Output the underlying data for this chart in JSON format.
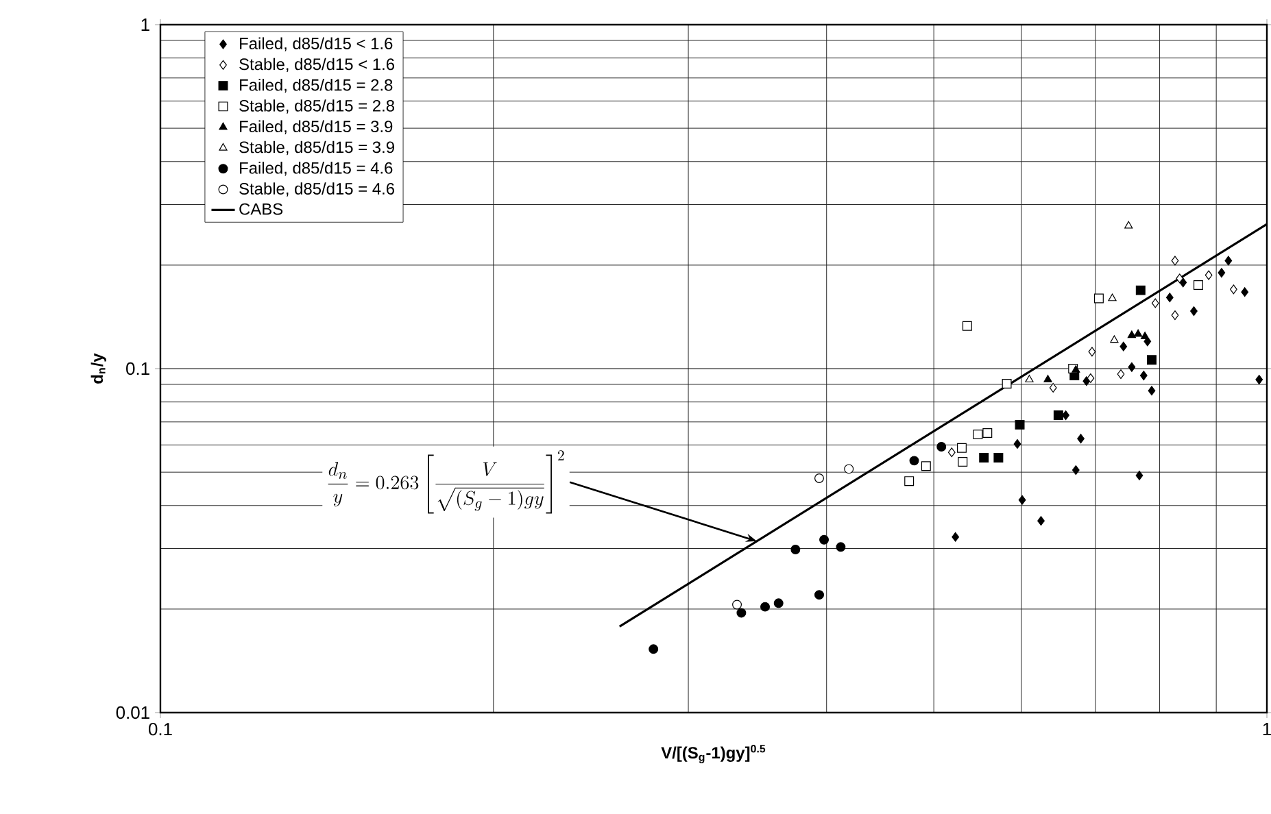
{
  "chart_data": {
    "type": "scatter",
    "xlabel": "V/[(S$_{g}$-1)gy]$^{0.5}$",
    "ylabel": "d$_{n}$/y",
    "log": "xy",
    "grid": true,
    "legend": "top left",
    "xlim": [
      0.1,
      1
    ],
    "ylim": [
      0.01,
      1
    ],
    "xticks": [
      0.1,
      1
    ],
    "yticks": [
      0.01,
      0.1,
      1
    ],
    "annotations": [
      {
        "text": "\\frac{d_n}{y} = 0.263\\left[\\frac{V}{\\sqrt{(S_g-1)gy}}\\right]^2",
        "x": 0.346,
        "y": 0.0315
      }
    ],
    "series": [
      {
        "name": "Failed, d85/d15 < 1.6",
        "marker": "diamond",
        "color": "#000000",
        "x": [
          0.523,
          0.601,
          0.625,
          0.595,
          0.672,
          0.679,
          0.687,
          0.767,
          0.755,
          0.774,
          0.787,
          0.742,
          0.78,
          0.817,
          0.859,
          0.84,
          0.91,
          0.923,
          0.955,
          0.984,
          0.658
        ],
        "values": [
          0.0324,
          0.0415,
          0.0361,
          0.0604,
          0.0507,
          0.0626,
          0.092,
          0.0489,
          0.101,
          0.0955,
          0.0863,
          0.116,
          0.12,
          0.161,
          0.147,
          0.178,
          0.19,
          0.206,
          0.167,
          0.0929,
          0.0732
        ]
      },
      {
        "name": "Stable, d85/d15 < 1.6",
        "marker": "diamond",
        "color": "#ffffff",
        "x": [
          0.826,
          0.826,
          0.886,
          0.933,
          0.793,
          0.695,
          0.738,
          0.693,
          0.641,
          0.519,
          0.834
        ],
        "values": [
          0.206,
          0.143,
          0.187,
          0.17,
          0.155,
          0.112,
          0.0964,
          0.0938,
          0.088,
          0.0571,
          0.183
        ]
      },
      {
        "name": "Failed, d85/d15 = 2.8",
        "marker": "square",
        "color": "#000000",
        "x": [
          0.555,
          0.572,
          0.598,
          0.648,
          0.67,
          0.769,
          0.787
        ],
        "values": [
          0.0551,
          0.0551,
          0.0687,
          0.0732,
          0.0955,
          0.169,
          0.106
        ]
      },
      {
        "name": "Stable, d85/d15 = 2.8",
        "marker": "square",
        "color": "#ffffff",
        "x": [
          0.536,
          0.475,
          0.492,
          0.53,
          0.531,
          0.548,
          0.559,
          0.582,
          0.668,
          0.705,
          0.867
        ],
        "values": [
          0.133,
          0.0471,
          0.0521,
          0.0588,
          0.0536,
          0.0644,
          0.065,
          0.0904,
          0.1,
          0.16,
          0.175
        ]
      },
      {
        "name": "Failed, d85/d15 = 3.9",
        "marker": "triangle",
        "color": "#000000",
        "x": [
          0.634,
          0.672,
          0.755,
          0.765,
          0.776
        ],
        "values": [
          0.0929,
          0.0991,
          0.125,
          0.126,
          0.124
        ]
      },
      {
        "name": "Stable, d85/d15 = 3.9",
        "marker": "triangle",
        "color": "#ffffff",
        "x": [
          0.75,
          0.725,
          0.728,
          0.61
        ],
        "values": [
          0.26,
          0.16,
          0.121,
          0.0929
        ]
      },
      {
        "name": "Failed, d85/d15 = 4.6",
        "marker": "circle",
        "color": "#000000",
        "x": [
          0.279,
          0.335,
          0.352,
          0.362,
          0.375,
          0.398,
          0.412,
          0.394,
          0.48,
          0.508
        ],
        "values": [
          0.0153,
          0.0195,
          0.0203,
          0.0208,
          0.0298,
          0.0318,
          0.0303,
          0.022,
          0.054,
          0.0593
        ]
      },
      {
        "name": "Stable, d85/d15 = 4.6",
        "marker": "circle",
        "color": "#ffffff",
        "x": [
          0.332,
          0.394,
          0.419
        ],
        "values": [
          0.0206,
          0.048,
          0.0511
        ]
      },
      {
        "name": "CABS",
        "type": "line",
        "color": "#000000",
        "x": [
          0.26,
          1.0
        ],
        "values": [
          0.0178,
          0.263
        ]
      }
    ]
  }
}
